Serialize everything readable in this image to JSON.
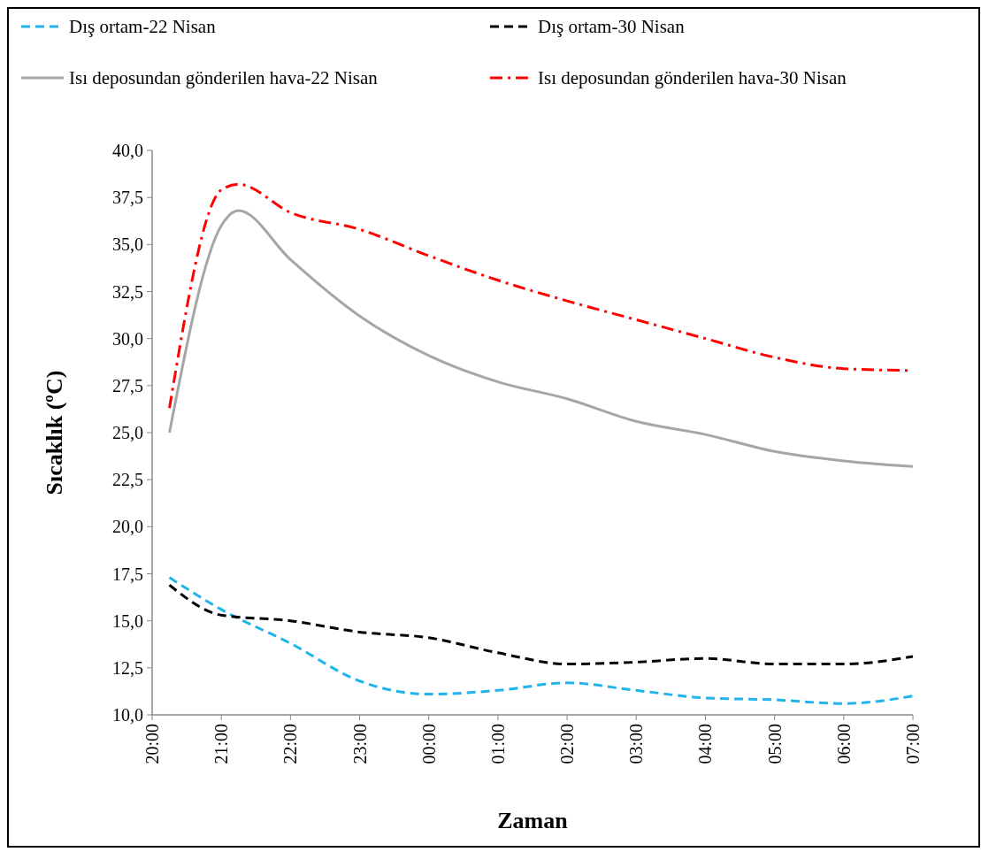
{
  "chart_data": {
    "type": "line",
    "xlabel": "Zaman",
    "ylabel": "Sıcaklık (ºC)",
    "xlim": [
      "2000-01-01T20:00",
      "2000-01-02T07:00"
    ],
    "xticks": [
      {
        "value": "2000-01-01T20:00",
        "label": "20:00"
      },
      {
        "value": "2000-01-01T21:00",
        "label": "21:00"
      },
      {
        "value": "2000-01-01T22:00",
        "label": "22:00"
      },
      {
        "value": "2000-01-01T23:00",
        "label": "23:00"
      },
      {
        "value": "2000-01-02T00:00",
        "label": "00:00"
      },
      {
        "value": "2000-01-02T01:00",
        "label": "01:00"
      },
      {
        "value": "2000-01-02T02:00",
        "label": "02:00"
      },
      {
        "value": "2000-01-02T03:00",
        "label": "03:00"
      },
      {
        "value": "2000-01-02T04:00",
        "label": "04:00"
      },
      {
        "value": "2000-01-02T05:00",
        "label": "05:00"
      },
      {
        "value": "2000-01-02T06:00",
        "label": "06:00"
      },
      {
        "value": "2000-01-02T07:00",
        "label": "07:00"
      }
    ],
    "ylim": [
      10,
      40
    ],
    "yticks": [
      {
        "value": 10,
        "label": "10,0"
      },
      {
        "value": 12.5,
        "label": "12,5"
      },
      {
        "value": 15,
        "label": "15,0"
      },
      {
        "value": 17.5,
        "label": "17,5"
      },
      {
        "value": 20,
        "label": "20,0"
      },
      {
        "value": 22.5,
        "label": "22,5"
      },
      {
        "value": 25,
        "label": "25,0"
      },
      {
        "value": 27.5,
        "label": "27,5"
      },
      {
        "value": 30,
        "label": "30,0"
      },
      {
        "value": 32.5,
        "label": "32,5"
      },
      {
        "value": 35,
        "label": "35,0"
      },
      {
        "value": 37.5,
        "label": "37,5"
      },
      {
        "value": 40,
        "label": "40,0"
      }
    ],
    "grid": false,
    "legend": "top",
    "marker": "none",
    "x": [
      "2000-01-01T20:15",
      "2000-01-01T21:00",
      "2000-01-01T22:00",
      "2000-01-01T23:00",
      "2000-01-02T00:00",
      "2000-01-02T01:00",
      "2000-01-02T02:00",
      "2000-01-02T03:00",
      "2000-01-02T04:00",
      "2000-01-02T05:00",
      "2000-01-02T06:00",
      "2000-01-02T07:00"
    ],
    "series": [
      {
        "name": "Dış ortam-22 Nisan",
        "color": "#1fb4ea",
        "line_style": "dashed",
        "values": [
          17.3,
          15.6,
          13.8,
          11.8,
          11.1,
          11.3,
          11.7,
          11.3,
          10.9,
          10.8,
          10.6,
          11.0
        ]
      },
      {
        "name": "Dış ortam-30 Nisan",
        "color": "#000000",
        "line_style": "dashed",
        "values": [
          16.9,
          15.3,
          15.0,
          14.4,
          14.1,
          13.3,
          12.7,
          12.8,
          13.0,
          12.7,
          12.7,
          13.1
        ]
      },
      {
        "name": "Isı deposundan gönderilen hava-22 Nisan",
        "color": "#a6a6a6",
        "line_style": "solid",
        "x": [
          "2000-01-01T20:15",
          "2000-01-01T21:00",
          "2000-01-01T21:15",
          "2000-01-01T22:00",
          "2000-01-01T23:00",
          "2000-01-02T00:00",
          "2000-01-02T01:00",
          "2000-01-02T02:00",
          "2000-01-02T03:00",
          "2000-01-02T04:00",
          "2000-01-02T05:00",
          "2000-01-02T06:00",
          "2000-01-02T07:00"
        ],
        "values": [
          25.0,
          36.0,
          36.8,
          34.2,
          31.2,
          29.1,
          27.7,
          26.8,
          25.6,
          24.9,
          24.0,
          23.5,
          23.2
        ]
      },
      {
        "name": "Isı deposundan gönderilen hava-30 Nisan",
        "color": "#ff0000",
        "line_style": "dashdot",
        "x": [
          "2000-01-01T20:15",
          "2000-01-01T21:00",
          "2000-01-01T21:15",
          "2000-01-01T22:00",
          "2000-01-01T23:00",
          "2000-01-02T00:00",
          "2000-01-02T01:00",
          "2000-01-02T02:00",
          "2000-01-02T03:00",
          "2000-01-02T04:00",
          "2000-01-02T05:00",
          "2000-01-02T06:00",
          "2000-01-02T07:00"
        ],
        "values": [
          26.3,
          37.9,
          38.2,
          36.7,
          35.8,
          34.4,
          33.1,
          32.0,
          31.0,
          30.0,
          29.0,
          28.4,
          28.3
        ]
      }
    ]
  }
}
